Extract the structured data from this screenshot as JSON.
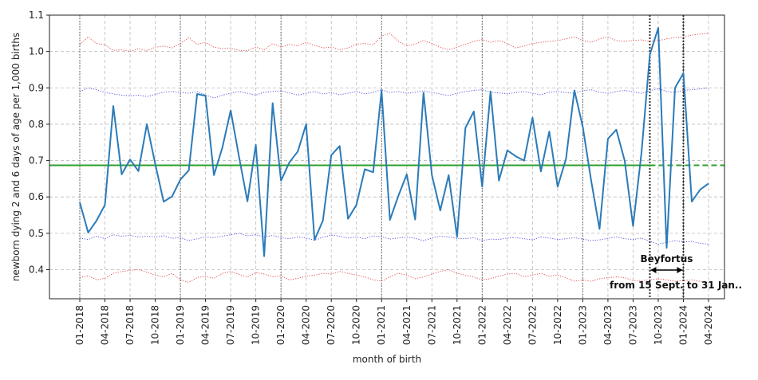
{
  "chart_data": {
    "type": "line",
    "xlabel": "month of birth",
    "ylabel": "newborn dying 2 and 6 days of age per 1,000 births",
    "ylim": [
      0.32,
      1.1
    ],
    "y_ticks": [
      "0.4",
      "0.5",
      "0.6",
      "0.7",
      "0.8",
      "0.9",
      "1.0",
      "1.1"
    ],
    "y_tick_values": [
      0.4,
      0.5,
      0.6,
      0.7,
      0.8,
      0.9,
      1.0,
      1.1
    ],
    "x_ticks": [
      "01-2018",
      "04-2018",
      "07-2018",
      "10-2018",
      "01-2019",
      "04-2019",
      "07-2019",
      "10-2019",
      "01-2020",
      "04-2020",
      "07-2020",
      "10-2020",
      "01-2021",
      "04-2021",
      "07-2021",
      "10-2021",
      "01-2022",
      "04-2022",
      "07-2022",
      "10-2022",
      "01-2023",
      "04-2023",
      "07-2023",
      "10-2023",
      "01-2024",
      "04-2024"
    ],
    "grid": true,
    "mean_level": 0.687,
    "year_start_months": [
      "01-2018",
      "01-2019",
      "01-2020",
      "01-2021",
      "01-2022",
      "01-2023",
      "01-2024"
    ],
    "highlight_months": [
      "09-2023",
      "01-2024"
    ],
    "colors": {
      "series": "#2b7bb9",
      "mean": "#2ca02c",
      "inner_band": "#4a4ae0",
      "outer_band": "#e04040",
      "grid": "#bbbbbb",
      "vline": "#333333"
    },
    "series": [
      {
        "values": [
          0.585,
          0.502,
          0.535,
          0.578,
          0.85,
          0.662,
          0.703,
          0.671,
          0.8,
          0.69,
          0.587,
          0.601,
          0.648,
          0.673,
          0.883,
          0.878,
          0.66,
          0.735,
          0.838,
          0.71,
          0.588,
          0.743,
          0.437,
          0.858,
          0.645,
          0.695,
          0.725,
          0.8,
          0.482,
          0.535,
          0.715,
          0.74,
          0.54,
          0.578,
          0.676,
          0.668,
          0.893,
          0.537,
          0.603,
          0.662,
          0.538,
          0.887,
          0.66,
          0.563,
          0.66,
          0.49,
          0.79,
          0.835,
          0.628,
          0.89,
          0.645,
          0.728,
          0.712,
          0.7,
          0.818,
          0.67,
          0.78,
          0.628,
          0.705,
          0.893,
          0.793,
          0.645,
          0.512,
          0.76,
          0.785,
          0.7,
          0.52,
          0.72,
          0.992,
          1.065,
          0.46,
          0.9,
          0.94,
          0.587,
          0.62,
          0.637
        ]
      }
    ],
    "band_inner_upper": [
      0.89,
      0.9,
      0.895,
      0.888,
      0.883,
      0.88,
      0.878,
      0.88,
      0.876,
      0.882,
      0.888,
      0.89,
      0.887,
      0.885,
      0.89,
      0.88,
      0.872,
      0.88,
      0.885,
      0.89,
      0.885,
      0.88,
      0.888,
      0.89,
      0.892,
      0.886,
      0.88,
      0.885,
      0.89,
      0.883,
      0.887,
      0.881,
      0.885,
      0.89,
      0.883,
      0.888,
      0.895,
      0.887,
      0.89,
      0.885,
      0.888,
      0.892,
      0.887,
      0.883,
      0.879,
      0.885,
      0.89,
      0.893,
      0.895,
      0.888,
      0.886,
      0.884,
      0.887,
      0.89,
      0.885,
      0.881,
      0.888,
      0.89,
      0.887,
      0.885,
      0.892,
      0.895,
      0.888,
      0.885,
      0.89,
      0.893,
      0.889,
      0.885,
      0.892,
      0.898,
      0.89,
      0.888,
      0.893,
      0.895,
      0.897,
      0.9
    ],
    "band_inner_lower": [
      0.487,
      0.483,
      0.492,
      0.485,
      0.496,
      0.492,
      0.494,
      0.49,
      0.492,
      0.49,
      0.493,
      0.486,
      0.488,
      0.48,
      0.485,
      0.49,
      0.488,
      0.492,
      0.496,
      0.5,
      0.493,
      0.496,
      0.49,
      0.494,
      0.488,
      0.485,
      0.49,
      0.487,
      0.481,
      0.489,
      0.495,
      0.492,
      0.487,
      0.49,
      0.485,
      0.493,
      0.49,
      0.484,
      0.487,
      0.49,
      0.486,
      0.48,
      0.487,
      0.492,
      0.49,
      0.486,
      0.485,
      0.488,
      0.48,
      0.484,
      0.483,
      0.487,
      0.488,
      0.485,
      0.482,
      0.49,
      0.487,
      0.483,
      0.485,
      0.488,
      0.484,
      0.48,
      0.482,
      0.486,
      0.49,
      0.485,
      0.483,
      0.487,
      0.478,
      0.47,
      0.475,
      0.48,
      0.476,
      0.478,
      0.472,
      0.47
    ],
    "band_outer_upper": [
      1.02,
      1.04,
      1.022,
      1.018,
      1.003,
      1.005,
      1.0,
      1.008,
      1.002,
      1.012,
      1.015,
      1.01,
      1.022,
      1.038,
      1.02,
      1.025,
      1.012,
      1.008,
      1.01,
      1.003,
      1.002,
      1.012,
      1.005,
      1.022,
      1.012,
      1.02,
      1.015,
      1.025,
      1.017,
      1.01,
      1.012,
      1.005,
      1.01,
      1.02,
      1.022,
      1.018,
      1.042,
      1.05,
      1.028,
      1.015,
      1.02,
      1.03,
      1.022,
      1.012,
      1.005,
      1.012,
      1.02,
      1.028,
      1.033,
      1.025,
      1.03,
      1.022,
      1.01,
      1.015,
      1.022,
      1.025,
      1.028,
      1.03,
      1.035,
      1.04,
      1.03,
      1.025,
      1.035,
      1.04,
      1.03,
      1.028,
      1.03,
      1.032,
      1.028,
      1.03,
      1.035,
      1.038,
      1.04,
      1.045,
      1.048,
      1.05
    ],
    "band_outer_lower": [
      0.378,
      0.383,
      0.372,
      0.376,
      0.39,
      0.395,
      0.398,
      0.4,
      0.393,
      0.385,
      0.38,
      0.39,
      0.372,
      0.365,
      0.378,
      0.382,
      0.376,
      0.39,
      0.395,
      0.387,
      0.38,
      0.392,
      0.388,
      0.38,
      0.383,
      0.372,
      0.376,
      0.382,
      0.385,
      0.39,
      0.388,
      0.395,
      0.39,
      0.385,
      0.38,
      0.372,
      0.368,
      0.38,
      0.39,
      0.385,
      0.375,
      0.38,
      0.388,
      0.395,
      0.4,
      0.39,
      0.385,
      0.38,
      0.372,
      0.375,
      0.382,
      0.388,
      0.39,
      0.38,
      0.385,
      0.39,
      0.382,
      0.385,
      0.378,
      0.368,
      0.372,
      0.368,
      0.375,
      0.378,
      0.38,
      0.378,
      0.37,
      0.37,
      0.372,
      0.375,
      0.372,
      0.368,
      0.37,
      0.372,
      0.368,
      0.365
    ],
    "annotations": {
      "label": "Beyfortus",
      "sublabel": "from 15 Sept. to 31 Jan.."
    }
  }
}
